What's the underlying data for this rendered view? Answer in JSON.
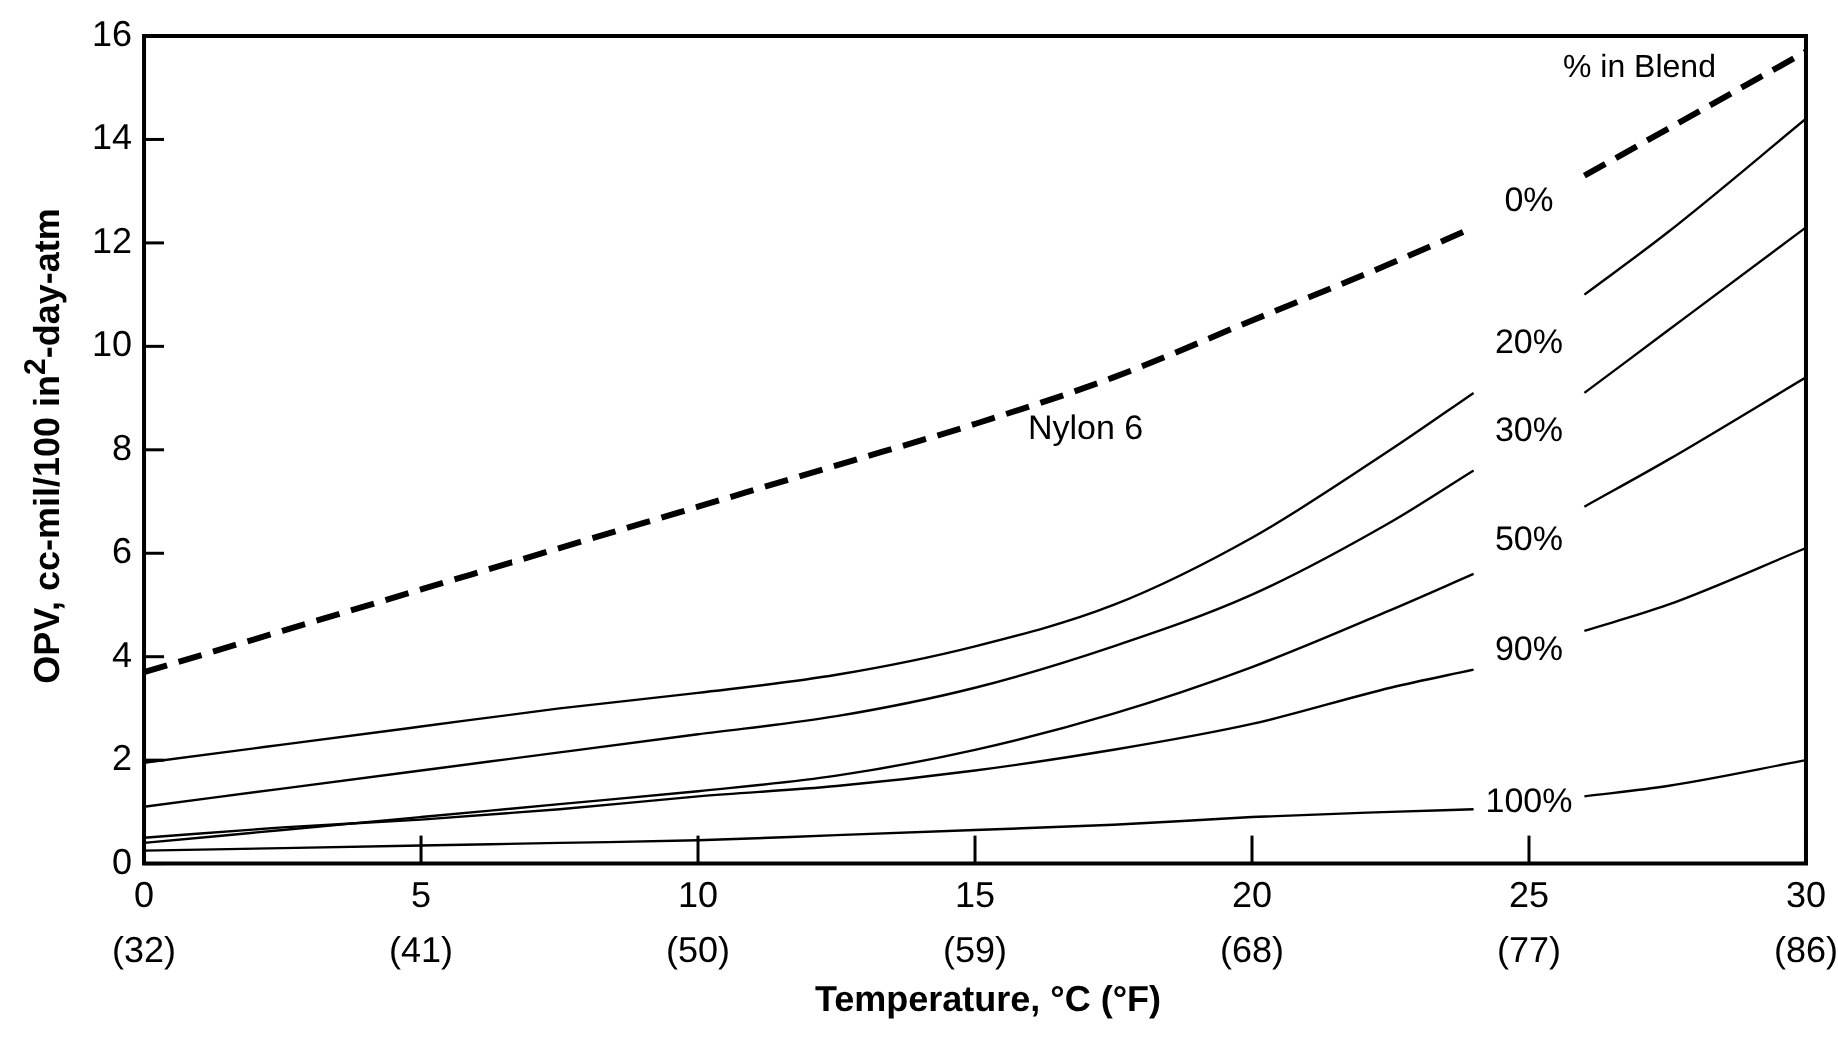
{
  "chart_data": {
    "type": "line",
    "xlabel": "Temperature, °C (°F)",
    "ylabel": "OPV, cc-mil/100 in$^{2}$-day-atm",
    "legend_title": "% in Blend",
    "x": [
      0,
      2.5,
      5,
      7.5,
      10,
      12.5,
      15,
      17.5,
      20,
      22.5,
      24,
      25,
      26,
      27.5,
      30
    ],
    "series": [
      {
        "name": "0%",
        "color": "#000000",
        "line_style": "dashed",
        "values": [
          3.7,
          4.5,
          5.3,
          6.1,
          6.9,
          7.7,
          8.5,
          9.4,
          10.5,
          11.6,
          12.3,
          null,
          13.3,
          14.2,
          15.7
        ]
      },
      {
        "name": "20%",
        "color": "#000000",
        "values": [
          1.95,
          2.3,
          2.65,
          3.0,
          3.3,
          3.65,
          4.2,
          5.0,
          6.3,
          8.0,
          9.1,
          null,
          11.0,
          12.2,
          14.4
        ]
      },
      {
        "name": "30%",
        "color": "#000000",
        "values": [
          1.1,
          1.45,
          1.8,
          2.15,
          2.5,
          2.85,
          3.4,
          4.2,
          5.2,
          6.6,
          7.6,
          null,
          9.1,
          10.3,
          12.3
        ]
      },
      {
        "name": "50%",
        "color": "#000000",
        "values": [
          0.4,
          0.65,
          0.9,
          1.15,
          1.4,
          1.7,
          2.2,
          2.9,
          3.8,
          4.9,
          5.6,
          null,
          6.9,
          7.8,
          9.4
        ]
      },
      {
        "name": "90%",
        "color": "#000000",
        "values": [
          0.5,
          0.7,
          0.85,
          1.05,
          1.3,
          1.5,
          1.8,
          2.2,
          2.7,
          3.4,
          3.75,
          null,
          4.5,
          5.0,
          6.1
        ]
      },
      {
        "name": "100%",
        "color": "#000000",
        "values": [
          0.25,
          0.3,
          0.35,
          0.4,
          0.45,
          0.55,
          0.65,
          0.75,
          0.9,
          1.0,
          1.05,
          null,
          1.3,
          1.5,
          2.0
        ]
      }
    ],
    "annotations": [
      "Nylon 6"
    ],
    "xlim": [
      0,
      30
    ],
    "xticks": [
      0,
      5,
      10,
      15,
      20,
      25,
      30
    ],
    "x2lim": [
      32,
      86
    ],
    "x2ticks": [
      {
        "value": 32,
        "label": "(32)"
      },
      {
        "value": 41,
        "label": "(41)"
      },
      {
        "value": 50,
        "label": "(50)"
      },
      {
        "value": 59,
        "label": "(59)"
      },
      {
        "value": 68,
        "label": "(68)"
      },
      {
        "value": 77,
        "label": "(77)"
      },
      {
        "value": 86,
        "label": "(86)"
      }
    ],
    "ylim": [
      0,
      16
    ],
    "yticks": [
      0,
      2,
      4,
      6,
      8,
      10,
      12,
      14,
      16
    ],
    "grid": false,
    "legend": false,
    "marker": "none",
    "line_style": "solid"
  }
}
